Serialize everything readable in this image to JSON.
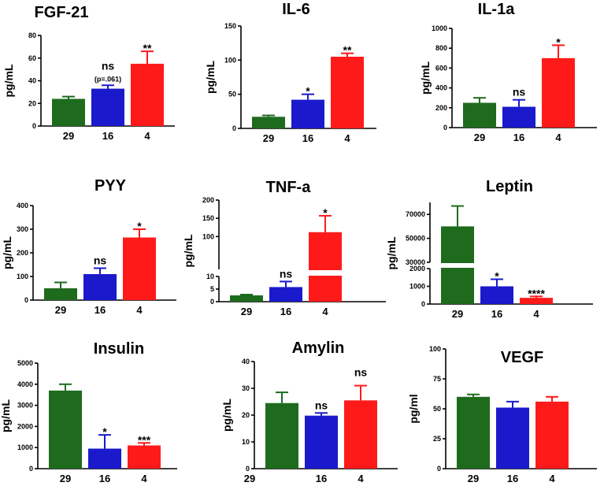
{
  "figure": "Serum cytokine and hormone levels across groups",
  "colors": {
    "group_29": "#1e6b1e",
    "group_16": "#1a1acc",
    "group_4": "#ff1a1a"
  },
  "chart_data": [
    {
      "type": "bar",
      "title": "FGF-21",
      "ylabel": "pg/mL",
      "categories": [
        "29",
        "16",
        "4"
      ],
      "values": [
        24,
        33,
        55
      ],
      "errors": [
        2,
        3,
        11
      ],
      "annotations": [
        "",
        "ns",
        "**"
      ],
      "subannotations": [
        "",
        "(p=.061)",
        ""
      ],
      "ylim": [
        0,
        80
      ],
      "yticks": [
        0,
        20,
        40,
        60,
        80
      ]
    },
    {
      "type": "bar",
      "title": "IL-6",
      "ylabel": "pg/mL",
      "categories": [
        "29",
        "16",
        "4"
      ],
      "values": [
        17,
        42,
        105
      ],
      "errors": [
        2,
        8,
        5
      ],
      "annotations": [
        "",
        "*",
        "**"
      ],
      "ylim": [
        0,
        150
      ],
      "yticks": [
        0,
        50,
        100,
        150
      ]
    },
    {
      "type": "bar",
      "title": "IL-1a",
      "ylabel": "pg/mL",
      "categories": [
        "29",
        "16",
        "4"
      ],
      "values": [
        250,
        210,
        700
      ],
      "errors": [
        50,
        70,
        130
      ],
      "annotations": [
        "",
        "ns",
        "*"
      ],
      "ylim": [
        0,
        1000
      ],
      "yticks": [
        0,
        200,
        400,
        600,
        800,
        1000
      ]
    },
    {
      "type": "bar",
      "title": "PYY",
      "ylabel": "pg/mL",
      "categories": [
        "29",
        "16",
        "4"
      ],
      "values": [
        50,
        110,
        265
      ],
      "errors": [
        25,
        25,
        35
      ],
      "annotations": [
        "",
        "ns",
        "*"
      ],
      "ylim": [
        0,
        400
      ],
      "yticks": [
        0,
        100,
        200,
        300,
        400
      ]
    },
    {
      "type": "bar",
      "title": "TNF-a",
      "ylabel": "pg/mL",
      "categories": [
        "29",
        "16",
        "4"
      ],
      "values": [
        2.5,
        5.8,
        112
      ],
      "errors": [
        0.3,
        2.2,
        45
      ],
      "annotations": [
        "",
        "ns",
        "*"
      ],
      "broken_axis": {
        "lower": [
          0,
          10
        ],
        "upper": [
          10,
          200
        ]
      },
      "yticks_lower": [
        0,
        5,
        10
      ],
      "yticks_upper": [
        100,
        150,
        200
      ]
    },
    {
      "type": "bar",
      "title": "Leptin",
      "ylabel": "pg/mL",
      "categories": [
        "29",
        "16",
        "4"
      ],
      "values": [
        60000,
        1000,
        350
      ],
      "errors": [
        17000,
        400,
        80
      ],
      "annotations": [
        "",
        "*",
        "****"
      ],
      "broken_axis": {
        "lower": [
          0,
          2000
        ],
        "upper": [
          30000,
          80000
        ]
      },
      "yticks_lower": [
        0,
        1000,
        2000
      ],
      "yticks_upper": [
        30000,
        50000,
        70000
      ]
    },
    {
      "type": "bar",
      "title": "Insulin",
      "ylabel": "pg/mL",
      "categories": [
        "29",
        "16",
        "4"
      ],
      "values": [
        3700,
        950,
        1100
      ],
      "errors": [
        300,
        650,
        120
      ],
      "annotations": [
        "",
        "*",
        "***"
      ],
      "ylim": [
        0,
        5000
      ],
      "yticks": [
        0,
        1000,
        2000,
        3000,
        4000,
        5000
      ]
    },
    {
      "type": "bar",
      "title": "Amylin",
      "ylabel": "pg/mL",
      "categories": [
        "29",
        "16",
        "4"
      ],
      "values": [
        24.5,
        19.8,
        25.5
      ],
      "errors": [
        4,
        1,
        5.5
      ],
      "annotations": [
        "",
        "ns",
        "ns"
      ],
      "ylim": [
        0,
        40
      ],
      "yticks": [
        0,
        10,
        20,
        30,
        40
      ]
    },
    {
      "type": "bar",
      "title": "VEGF",
      "ylabel": "pg/ml",
      "categories": [
        "29",
        "16",
        "4"
      ],
      "values": [
        60,
        51,
        56
      ],
      "errors": [
        2,
        5,
        4
      ],
      "annotations": [
        "",
        "",
        ""
      ],
      "ylim": [
        0,
        100
      ],
      "yticks": [
        0,
        25,
        50,
        75,
        100
      ]
    }
  ]
}
